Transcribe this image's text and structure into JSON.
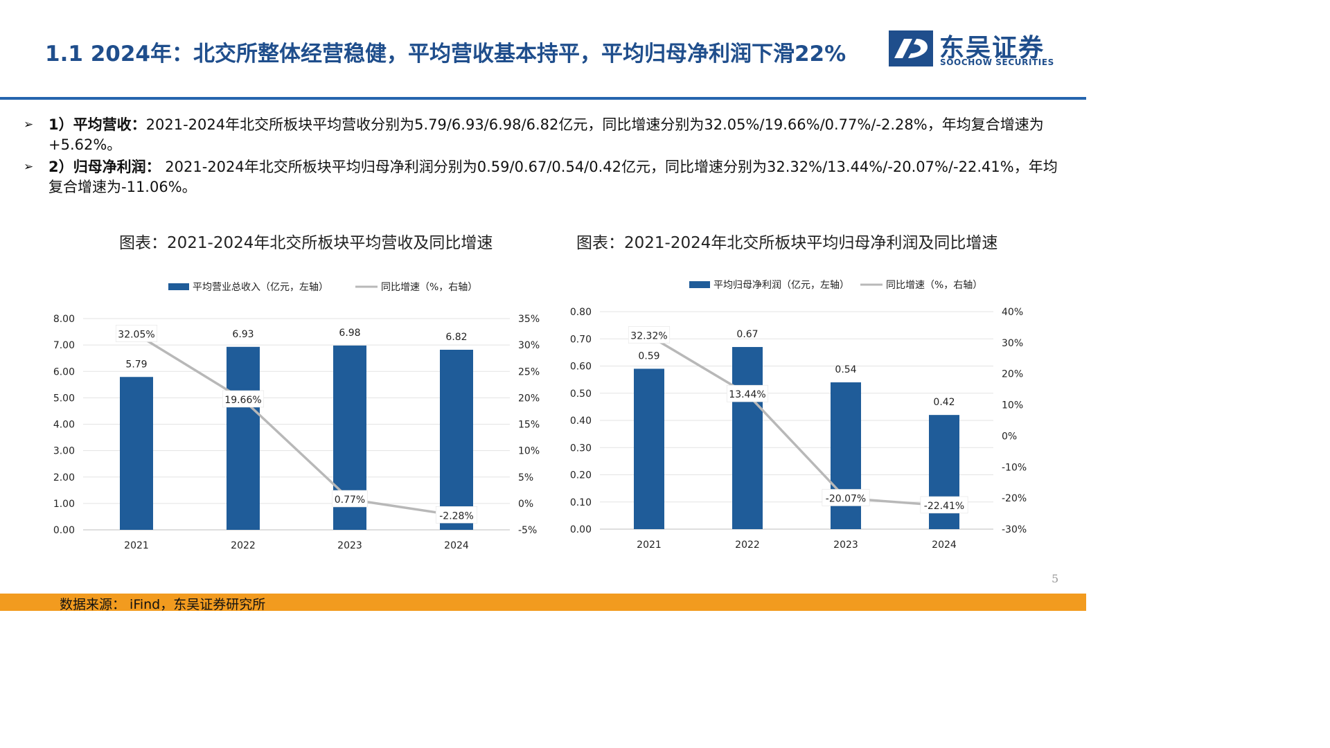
{
  "header": {
    "title": "1.1 2024年：北交所整体经营稳健，平均营收基本持平，平均归母净利润下滑22%",
    "logo_cn": "东吴证券",
    "logo_en": "SOOCHOW SECURITIES"
  },
  "bullets": [
    {
      "marker": "➢",
      "label": "1）平均营收：",
      "text": "2021-2024年北交所板块平均营收分别为5.79/6.93/6.98/6.82亿元，同比增速分别为32.05%/19.66%/0.77%/-2.28%，年均复合增速为+5.62%。"
    },
    {
      "marker": "➢",
      "label": "2）归母净利润：",
      "text": " 2021-2024年北交所板块平均归母净利润分别为0.59/0.67/0.54/0.42亿元，同比增速分别为32.32%/13.44%/-20.07%/-22.41%，年均复合增速为-11.06%。"
    }
  ],
  "charts": {
    "left_title": "图表：2021-2024年北交所板块平均营收及同比增速",
    "right_title": "图表：2021-2024年北交所板块平均归母净利润及同比增速"
  },
  "chart_data": [
    {
      "type": "bar",
      "title": "图表：2021-2024年北交所板块平均营收及同比增速",
      "categories": [
        "2021",
        "2022",
        "2023",
        "2024"
      ],
      "series": [
        {
          "name": "平均营业总收入（亿元，左轴）",
          "type": "bar",
          "axis": "left",
          "values": [
            5.79,
            6.93,
            6.98,
            6.82
          ],
          "labels": [
            "5.79",
            "6.93",
            "6.98",
            "6.82"
          ],
          "color": "#1f5c99"
        },
        {
          "name": "同比增速（%，右轴）",
          "type": "line",
          "axis": "right",
          "values": [
            32.05,
            19.66,
            0.77,
            -2.28
          ],
          "labels": [
            "32.05%",
            "19.66%",
            "0.77%",
            "-2.28%"
          ],
          "color": "#b8b8b8"
        }
      ],
      "ylim_left": [
        0,
        8
      ],
      "yticks_left": [
        "0.00",
        "1.00",
        "2.00",
        "3.00",
        "4.00",
        "5.00",
        "6.00",
        "7.00",
        "8.00"
      ],
      "ylim_right": [
        -5,
        35
      ],
      "yticks_right": [
        "-5%",
        "0%",
        "5%",
        "10%",
        "15%",
        "20%",
        "25%",
        "30%",
        "35%"
      ],
      "grid": true,
      "legend": "top-center"
    },
    {
      "type": "bar",
      "title": "图表：2021-2024年北交所板块平均归母净利润及同比增速",
      "categories": [
        "2021",
        "2022",
        "2023",
        "2024"
      ],
      "series": [
        {
          "name": "平均归母净利润（亿元，左轴）",
          "type": "bar",
          "axis": "left",
          "values": [
            0.59,
            0.67,
            0.54,
            0.42
          ],
          "labels": [
            "0.59",
            "0.67",
            "0.54",
            "0.42"
          ],
          "color": "#1f5c99"
        },
        {
          "name": "同比增速（%，右轴）",
          "type": "line",
          "axis": "right",
          "values": [
            32.32,
            13.44,
            -20.07,
            -22.41
          ],
          "labels": [
            "32.32%",
            "13.44%",
            "-20.07%",
            "-22.41%"
          ],
          "color": "#b8b8b8"
        }
      ],
      "ylim_left": [
        0,
        0.8
      ],
      "yticks_left": [
        "0.00",
        "0.10",
        "0.20",
        "0.30",
        "0.40",
        "0.50",
        "0.60",
        "0.70",
        "0.80"
      ],
      "ylim_right": [
        -30,
        40
      ],
      "yticks_right": [
        "-30%",
        "-20%",
        "-10%",
        "0%",
        "10%",
        "20%",
        "30%",
        "40%"
      ],
      "grid": true,
      "legend": "top-center"
    }
  ],
  "footer": {
    "source": "数据来源： iFind，东吴证券研究所",
    "page": "5"
  },
  "colors": {
    "brand": "#1f4e8c",
    "bar": "#1f5c99",
    "line": "#b8b8b8",
    "footer": "#f29b1f",
    "divider": "#2565ae"
  }
}
